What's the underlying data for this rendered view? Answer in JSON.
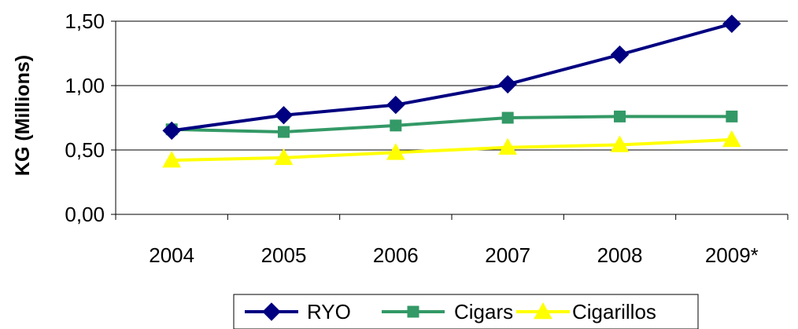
{
  "chart_data": {
    "type": "line",
    "categories": [
      "2004",
      "2005",
      "2006",
      "2007",
      "2008",
      "2009*"
    ],
    "series": [
      {
        "name": "RYO",
        "values": [
          0.65,
          0.77,
          0.85,
          1.01,
          1.24,
          1.48
        ],
        "color": "#000080",
        "marker": "diamond"
      },
      {
        "name": "Cigars",
        "values": [
          0.66,
          0.64,
          0.69,
          0.75,
          0.76,
          0.76
        ],
        "color": "#339966",
        "marker": "square"
      },
      {
        "name": "Cigarillos",
        "values": [
          0.42,
          0.44,
          0.48,
          0.52,
          0.54,
          0.58
        ],
        "color": "#FFFF00",
        "marker": "triangle"
      }
    ],
    "yticks": [
      "0,00",
      "0,50",
      "1,00",
      "1,50"
    ],
    "ylim": [
      0,
      1.5
    ],
    "xlabel": "",
    "ylabel": "KG (Millions)",
    "grid": "horizontal",
    "legend_position": "bottom"
  }
}
